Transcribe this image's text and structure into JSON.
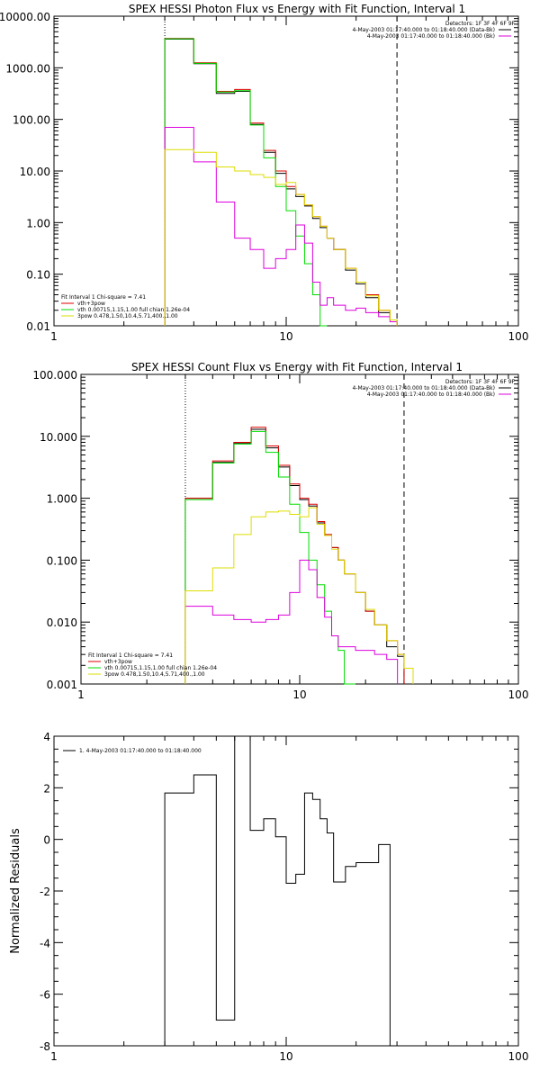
{
  "chart_data": [
    {
      "type": "line",
      "title": "SPEX HESSI Photon Flux vs Energy with Fit Function, Interval 1",
      "xscale": "log",
      "yscale": "log",
      "xlim": [
        1,
        100
      ],
      "ylim": [
        0.01,
        10000
      ],
      "xticks": [
        {
          "v": 1,
          "label": "1"
        },
        {
          "v": 10,
          "label": "10"
        },
        {
          "v": 100,
          "label": "100"
        }
      ],
      "yticks": [
        {
          "v": 10000,
          "label": "10000.00"
        },
        {
          "v": 1000,
          "label": "1000.00"
        },
        {
          "v": 100,
          "label": "100.00"
        },
        {
          "v": 10,
          "label": "10.00"
        },
        {
          "v": 1,
          "label": "1.00"
        },
        {
          "v": 0.1,
          "label": "0.10"
        },
        {
          "v": 0.01,
          "label": "0.01"
        }
      ],
      "vlines": [
        {
          "x": 3,
          "style": "dotted"
        },
        {
          "x": 30,
          "style": "dashed"
        }
      ],
      "legend_top_right": [
        {
          "text": "Detectors: 1F 3F 4F 6F 9F",
          "color": ""
        },
        {
          "text": "4-May-2003 01:17:40.000 to 01:18:40.000 (Data-Bk)",
          "color": "#000000"
        },
        {
          "text": "4-May-2003 01:17:40.000 to 01:18:40.000 (Bk)",
          "color": "#dd00dd"
        }
      ],
      "legend_bottom_left": [
        {
          "text": "Fit Interval 1    Chi-square = 7.41",
          "color": ""
        },
        {
          "text": "vth+3pow",
          "color": "#dd0000"
        },
        {
          "text": "vth 0.00715,1.15,1.00  full chian 1.26e-04",
          "color": "#00dd00"
        },
        {
          "text": "3pow 0.478,1.50,10.4,5.71,400.,1.00",
          "color": "#dddd00"
        }
      ],
      "bin_edges": [
        3,
        4,
        5,
        6,
        7,
        8,
        9,
        10,
        11,
        12,
        13,
        14,
        15,
        16,
        18,
        20,
        22,
        25,
        28,
        30
      ],
      "series": [
        {
          "color": "#000000",
          "values": [
            3600,
            1200,
            320,
            350,
            80,
            23,
            9,
            4.5,
            3.2,
            2.1,
            1.2,
            0.8,
            0.5,
            0.3,
            0.12,
            0.065,
            0.035,
            0.018,
            0.013
          ]
        },
        {
          "color": "#dd0000",
          "values": [
            3700,
            1250,
            350,
            380,
            85,
            25,
            10,
            5,
            3.5,
            2.2,
            1.3,
            0.85,
            0.5,
            0.3,
            0.13,
            0.07,
            0.04,
            0.02,
            0.013
          ]
        },
        {
          "color": "#00dd00",
          "values": [
            3650,
            1220,
            340,
            360,
            78,
            18,
            5,
            1.7,
            0.55,
            0.16,
            0.04,
            0.01
          ]
        },
        {
          "color": "#dd00dd",
          "values": [
            70,
            15,
            2.5,
            0.5,
            0.3,
            0.13,
            0.2,
            0.3,
            0.9,
            0.4,
            0.07,
            0.025,
            0.035,
            0.025,
            0.02,
            0.022,
            0.018,
            0.015,
            0.012
          ]
        },
        {
          "color": "#dddd00",
          "values": [
            26,
            23,
            12,
            10,
            8.5,
            7.5,
            5.5,
            6,
            3.5,
            2.2,
            1.3,
            0.85,
            0.5,
            0.3,
            0.13,
            0.07,
            0.038,
            0.02,
            0.013
          ]
        }
      ]
    },
    {
      "type": "line",
      "title": "SPEX HESSI Count Flux vs Energy with Fit Function, Interval 1",
      "xscale": "log",
      "yscale": "log",
      "xlim": [
        1,
        100
      ],
      "ylim": [
        0.001,
        100
      ],
      "xticks": [
        {
          "v": 1,
          "label": "1"
        },
        {
          "v": 10,
          "label": "10"
        },
        {
          "v": 100,
          "label": "100"
        }
      ],
      "yticks": [
        {
          "v": 100,
          "label": "100.000"
        },
        {
          "v": 10,
          "label": "10.000"
        },
        {
          "v": 1,
          "label": "1.000"
        },
        {
          "v": 0.1,
          "label": "0.100"
        },
        {
          "v": 0.01,
          "label": "0.010"
        },
        {
          "v": 0.001,
          "label": "0.001"
        }
      ],
      "vlines": [
        {
          "x": 3,
          "style": "dotted"
        },
        {
          "x": 30,
          "style": "dashed"
        }
      ],
      "legend_top_right": [
        {
          "text": "Detectors: 1F 3F 4F 6F 9F",
          "color": ""
        },
        {
          "text": "4-May-2003 01:17:40.000 to 01:18:40.000 (Data-Bk)",
          "color": "#000000"
        },
        {
          "text": "4-May-2003 01:17:40.000 to 01:18:40.000 (Bk)",
          "color": "#dd00dd"
        }
      ],
      "legend_bottom_left": [
        {
          "text": "Fit Interval 1    Chi-square = 7.41",
          "color": ""
        },
        {
          "text": "vth+3pow",
          "color": "#dd0000"
        },
        {
          "text": "vth 0.00715,1.15,1.00  full chian 1.26e-04",
          "color": "#00dd00"
        },
        {
          "text": "3pow 0.478,1.50,10.4,5.71,400.,1.00",
          "color": "#dddd00"
        }
      ],
      "bin_edges": [
        3,
        4,
        5,
        6,
        7,
        8,
        9,
        10,
        11,
        12,
        13,
        14,
        15,
        16,
        18,
        20,
        22,
        25,
        28,
        30,
        33
      ],
      "series": [
        {
          "color": "#000000",
          "values": [
            1.0,
            3.8,
            7.8,
            13,
            6.5,
            3.2,
            1.6,
            0.95,
            0.75,
            0.4,
            0.25,
            0.16,
            0.1,
            0.06,
            0.03,
            0.015,
            0.009,
            0.004,
            0.0028
          ]
        },
        {
          "color": "#dd0000",
          "values": [
            1.0,
            4.0,
            8.0,
            14,
            7.0,
            3.4,
            1.7,
            1.0,
            0.8,
            0.42,
            0.26,
            0.16,
            0.1,
            0.06,
            0.03,
            0.015,
            0.009,
            0.005,
            0.003
          ]
        },
        {
          "color": "#00dd00",
          "values": [
            0.95,
            3.7,
            7.5,
            12,
            5.5,
            2.2,
            0.8,
            0.28,
            0.1,
            0.04,
            0.015,
            0.006,
            0.0035,
            0.001
          ]
        },
        {
          "color": "#dd00dd",
          "values": [
            0.018,
            0.013,
            0.011,
            0.01,
            0.011,
            0.013,
            0.03,
            0.1,
            0.07,
            0.025,
            0.012,
            0.006,
            0.004,
            0.004,
            0.0035,
            0.0035,
            0.003,
            0.0025
          ]
        },
        {
          "color": "#dddd00",
          "values": [
            0.032,
            0.075,
            0.26,
            0.5,
            0.6,
            0.62,
            0.55,
            0.5,
            0.7,
            0.38,
            0.25,
            0.15,
            0.1,
            0.06,
            0.03,
            0.016,
            0.009,
            0.005,
            0.003,
            0.0018
          ]
        }
      ]
    },
    {
      "type": "line",
      "title": "",
      "xscale": "log",
      "yscale": "linear",
      "xlim": [
        1,
        100
      ],
      "ylim": [
        -8,
        4
      ],
      "ylabel": "Normalized Residuals",
      "xticks": [
        {
          "v": 1,
          "label": "1"
        },
        {
          "v": 10,
          "label": "10"
        },
        {
          "v": 100,
          "label": "100"
        }
      ],
      "yticks": [
        {
          "v": 4,
          "label": "4"
        },
        {
          "v": 2,
          "label": "2"
        },
        {
          "v": 0,
          "label": "0"
        },
        {
          "v": -2,
          "label": "-2"
        },
        {
          "v": -4,
          "label": "-4"
        },
        {
          "v": -6,
          "label": "-6"
        },
        {
          "v": -8,
          "label": "-8"
        }
      ],
      "legend_top_left": [
        {
          "text": "1.  4-May-2003 01:17:40.000 to 01:18:40.000",
          "color": "#000000"
        }
      ],
      "bin_edges": [
        3,
        4,
        5,
        6,
        7,
        8,
        9,
        10,
        11,
        12,
        13,
        14,
        15,
        16,
        18,
        20,
        22,
        25,
        28,
        30
      ],
      "series": [
        {
          "color": "#000000",
          "values": [
            1.8,
            2.5,
            -7.0,
            4.0,
            0.35,
            0.8,
            0.1,
            -1.7,
            -1.35,
            1.8,
            1.55,
            0.8,
            0.25,
            -1.65,
            -1.05,
            -0.9,
            -0.9,
            -0.2,
            -8
          ]
        }
      ]
    }
  ]
}
